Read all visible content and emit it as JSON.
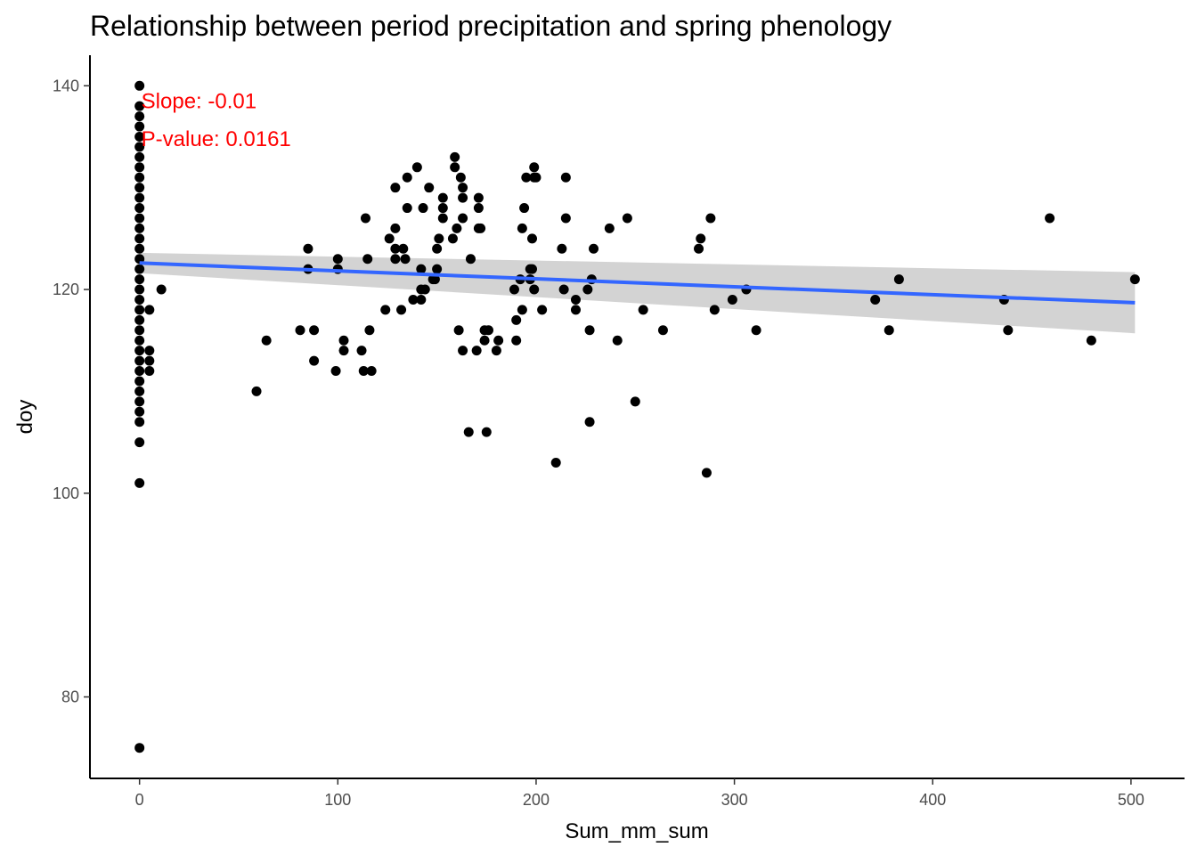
{
  "chart_data": {
    "type": "scatter",
    "title": "Relationship between period precipitation and spring phenology",
    "xlabel": "Sum_mm_sum",
    "ylabel": "doy",
    "xlim": [
      -25,
      527
    ],
    "ylim": [
      72,
      143
    ],
    "x_ticks": [
      0,
      100,
      200,
      300,
      400,
      500
    ],
    "y_ticks": [
      80,
      100,
      120,
      140
    ],
    "grid": false,
    "legend": "none",
    "colors": {
      "points": "#000000",
      "fit_line": "#3366ff",
      "confidence_band": "#d3d3d3",
      "annotation": "#ff0000"
    },
    "annotations": [
      {
        "text": "Slope: -0.01",
        "x": 0,
        "y": 138.5
      },
      {
        "text": "P-value: 0.0161",
        "x": 0,
        "y": 134.8
      }
    ],
    "fit": {
      "x": [
        0,
        502
      ],
      "y": [
        122.6,
        118.7
      ],
      "band_upper": [
        123.6,
        121.7
      ],
      "band_lower": [
        121.6,
        115.7
      ]
    },
    "series": [
      {
        "points": [
          [
            0,
            140
          ],
          [
            0,
            138
          ],
          [
            0,
            137
          ],
          [
            0,
            136
          ],
          [
            0,
            135
          ],
          [
            0,
            134
          ],
          [
            0,
            133
          ],
          [
            0,
            132
          ],
          [
            0,
            131
          ],
          [
            0,
            130
          ],
          [
            0,
            129
          ],
          [
            0,
            128
          ],
          [
            0,
            127
          ],
          [
            0,
            126
          ],
          [
            0,
            125
          ],
          [
            0,
            124
          ],
          [
            0,
            123
          ],
          [
            0,
            122
          ],
          [
            0,
            121
          ],
          [
            0,
            120
          ],
          [
            0,
            119
          ],
          [
            0,
            118
          ],
          [
            0,
            117
          ],
          [
            0,
            116
          ],
          [
            0,
            115
          ],
          [
            0,
            114
          ],
          [
            0,
            113
          ],
          [
            0,
            112
          ],
          [
            0,
            111
          ],
          [
            0,
            110
          ],
          [
            0,
            109
          ],
          [
            0,
            108
          ],
          [
            0,
            107
          ],
          [
            0,
            105
          ],
          [
            0,
            101
          ],
          [
            0,
            75
          ],
          [
            5,
            118
          ],
          [
            5,
            114
          ],
          [
            5,
            113
          ],
          [
            5,
            112
          ],
          [
            11,
            120
          ],
          [
            59,
            110
          ],
          [
            64,
            115
          ],
          [
            81,
            116
          ],
          [
            85,
            124
          ],
          [
            85,
            122
          ],
          [
            88,
            116
          ],
          [
            88,
            113
          ],
          [
            99,
            112
          ],
          [
            100,
            123
          ],
          [
            100,
            122
          ],
          [
            103,
            115
          ],
          [
            103,
            114
          ],
          [
            112,
            114
          ],
          [
            113,
            112
          ],
          [
            114,
            127
          ],
          [
            115,
            123
          ],
          [
            116,
            116
          ],
          [
            117,
            112
          ],
          [
            124,
            118
          ],
          [
            126,
            125
          ],
          [
            129,
            130
          ],
          [
            129,
            126
          ],
          [
            129,
            124
          ],
          [
            129,
            123
          ],
          [
            132,
            118
          ],
          [
            133,
            124
          ],
          [
            134,
            123
          ],
          [
            135,
            128
          ],
          [
            135,
            131
          ],
          [
            138,
            119
          ],
          [
            140,
            132
          ],
          [
            142,
            122
          ],
          [
            142,
            120
          ],
          [
            142,
            119
          ],
          [
            143,
            128
          ],
          [
            144,
            120
          ],
          [
            146,
            130
          ],
          [
            148,
            121
          ],
          [
            149,
            121
          ],
          [
            150,
            124
          ],
          [
            150,
            122
          ],
          [
            151,
            125
          ],
          [
            153,
            129
          ],
          [
            153,
            128
          ],
          [
            153,
            127
          ],
          [
            158,
            125
          ],
          [
            159,
            133
          ],
          [
            159,
            132
          ],
          [
            160,
            126
          ],
          [
            161,
            116
          ],
          [
            162,
            131
          ],
          [
            163,
            130
          ],
          [
            163,
            129
          ],
          [
            163,
            127
          ],
          [
            163,
            114
          ],
          [
            166,
            106
          ],
          [
            167,
            123
          ],
          [
            170,
            114
          ],
          [
            171,
            129
          ],
          [
            171,
            128
          ],
          [
            171,
            126
          ],
          [
            172,
            126
          ],
          [
            174,
            116
          ],
          [
            174,
            115
          ],
          [
            175,
            106
          ],
          [
            176,
            116
          ],
          [
            180,
            114
          ],
          [
            181,
            115
          ],
          [
            189,
            120
          ],
          [
            190,
            117
          ],
          [
            190,
            115
          ],
          [
            192,
            121
          ],
          [
            193,
            118
          ],
          [
            193,
            126
          ],
          [
            194,
            128
          ],
          [
            195,
            131
          ],
          [
            197,
            122
          ],
          [
            197,
            121
          ],
          [
            198,
            125
          ],
          [
            198,
            122
          ],
          [
            199,
            131
          ],
          [
            199,
            132
          ],
          [
            199,
            120
          ],
          [
            200,
            131
          ],
          [
            203,
            118
          ],
          [
            210,
            103
          ],
          [
            213,
            124
          ],
          [
            214,
            120
          ],
          [
            215,
            131
          ],
          [
            215,
            127
          ],
          [
            220,
            119
          ],
          [
            220,
            118
          ],
          [
            226,
            120
          ],
          [
            227,
            116
          ],
          [
            227,
            107
          ],
          [
            228,
            121
          ],
          [
            229,
            124
          ],
          [
            237,
            126
          ],
          [
            241,
            115
          ],
          [
            246,
            127
          ],
          [
            250,
            109
          ],
          [
            254,
            118
          ],
          [
            264,
            116
          ],
          [
            282,
            124
          ],
          [
            283,
            125
          ],
          [
            286,
            102
          ],
          [
            288,
            127
          ],
          [
            290,
            118
          ],
          [
            299,
            119
          ],
          [
            306,
            120
          ],
          [
            311,
            116
          ],
          [
            371,
            119
          ],
          [
            378,
            116
          ],
          [
            383,
            121
          ],
          [
            436,
            119
          ],
          [
            438,
            116
          ],
          [
            459,
            127
          ],
          [
            480,
            115
          ],
          [
            502,
            121
          ]
        ]
      }
    ]
  }
}
